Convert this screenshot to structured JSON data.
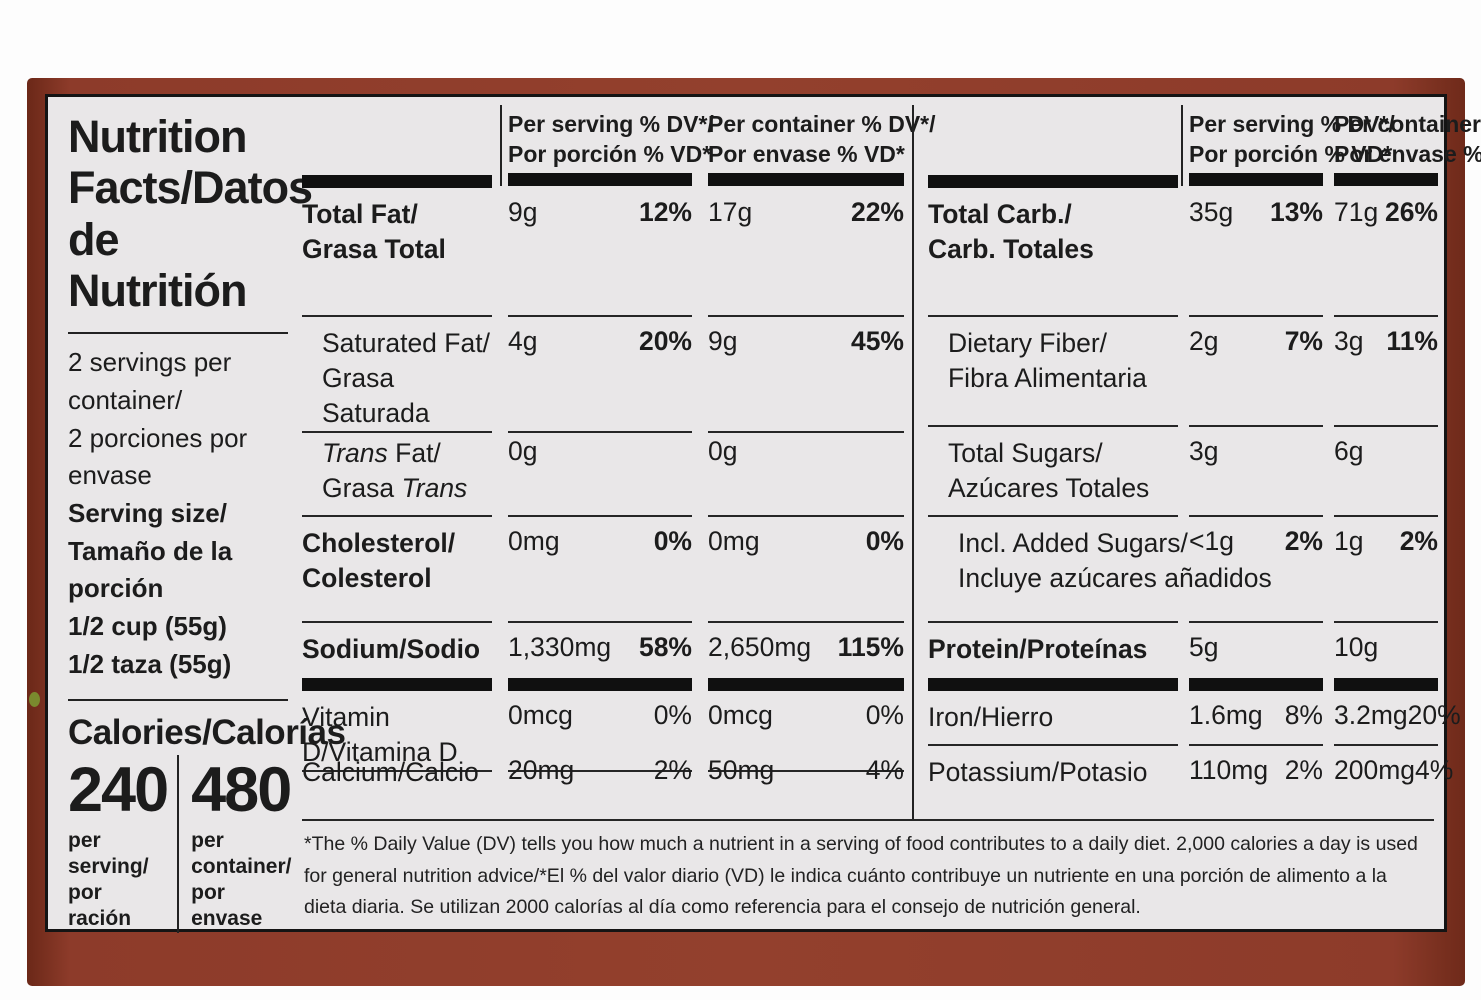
{
  "panel": {
    "title": {
      "line1": "Nutrition",
      "line2": "Facts/Datos",
      "line3": "de Nutritión"
    },
    "serving_info": {
      "servings_en": "2 servings per container/",
      "servings_es": "2 porciones por envase",
      "size_en": "Serving size/",
      "size_es": "Tamaño de la porción",
      "size_val_en": "1/2 cup (55g)",
      "size_val_es": "1/2 taza (55g)"
    },
    "calories": {
      "heading": "Calories/Calorías",
      "per_serving_value": "240",
      "per_serving_cap1": "per serving/",
      "per_serving_cap2": "por ración",
      "per_container_value": "480",
      "per_container_cap1": "per container/",
      "per_container_cap2": "por envase"
    },
    "column_headers": {
      "serving_l1": "Per serving % DV*/",
      "serving_l2": "Por porción % VD*",
      "container_l1": "Per container % DV*/",
      "container_l2": "Por envase % VD*"
    },
    "left_table": {
      "rows": [
        {
          "label_en": "Total Fat/",
          "label_es": "Grasa Total",
          "amt_serv": "9g",
          "dv_serv": "12%",
          "amt_cont": "17g",
          "dv_cont": "22%"
        },
        {
          "label_en": "Saturated Fat/",
          "label_es": "Grasa Saturada",
          "amt_serv": "4g",
          "dv_serv": "20%",
          "amt_cont": "9g",
          "dv_cont": "45%"
        },
        {
          "label_en_it": "Trans",
          "label_en_rest": " Fat/",
          "label_es_rest": "Grasa ",
          "label_es_it": "Trans",
          "amt_serv": "0g",
          "dv_serv": "",
          "amt_cont": "0g",
          "dv_cont": ""
        },
        {
          "label_en": "Cholesterol/",
          "label_es": "Colesterol",
          "amt_serv": "0mg",
          "dv_serv": "0%",
          "amt_cont": "0mg",
          "dv_cont": "0%"
        },
        {
          "label_en": "Sodium/Sodio",
          "label_es": "",
          "amt_serv": "1,330mg",
          "dv_serv": "58%",
          "amt_cont": "2,650mg",
          "dv_cont": "115%"
        },
        {
          "label_en": "Vitamin D/Vitamina D",
          "label_es": "",
          "amt_serv": "0mcg",
          "dv_serv": "0%",
          "amt_cont": "0mcg",
          "dv_cont": "0%"
        },
        {
          "label_en": "Calcium/Calcio",
          "label_es": "",
          "amt_serv": "20mg",
          "dv_serv": "2%",
          "amt_cont": "50mg",
          "dv_cont": "4%"
        }
      ]
    },
    "right_table": {
      "rows": [
        {
          "label_en": "Total Carb./",
          "label_es": "Carb. Totales",
          "amt_serv": "35g",
          "dv_serv": "13%",
          "amt_cont": "71g",
          "dv_cont": "26%"
        },
        {
          "label_en": "Dietary Fiber/",
          "label_es": "Fibra Alimentaria",
          "amt_serv": "2g",
          "dv_serv": "7%",
          "amt_cont": "3g",
          "dv_cont": "11%"
        },
        {
          "label_en": "Total Sugars/",
          "label_es": "Azúcares Totales",
          "amt_serv": "3g",
          "dv_serv": "",
          "amt_cont": "6g",
          "dv_cont": ""
        },
        {
          "label_en": "Incl. Added Sugars/",
          "label_es": "Incluye azúcares añadidos",
          "amt_serv": "<1g",
          "dv_serv": "2%",
          "amt_cont": "1g",
          "dv_cont": "2%"
        },
        {
          "label_en": "Protein/Proteínas",
          "label_es": "",
          "amt_serv": "5g",
          "dv_serv": "",
          "amt_cont": "10g",
          "dv_cont": ""
        },
        {
          "label_en": "Iron/Hierro",
          "label_es": "",
          "amt_serv": "1.6mg",
          "dv_serv": "8%",
          "amt_cont": "3.2mg",
          "dv_cont": "20%"
        },
        {
          "label_en": "Potassium/Potasio",
          "label_es": "",
          "amt_serv": "110mg",
          "dv_serv": "2%",
          "amt_cont": "200mg",
          "dv_cont": "4%"
        }
      ]
    },
    "footnote": "*The % Daily Value (DV) tells you how much a nutrient in a serving of food contributes to a daily diet. 2,000 calories a day is used for general nutrition advice/*El % del valor diario (VD) le indica cuánto contribuye un nutriente en una porción de alimento a la dieta diaria. Se utilizan 2000 calorías al día como referencia para el consejo de nutrición general.",
    "colors": {
      "can": "#93402d",
      "label_bg": "#e9e7e8",
      "ink": "#1c1c1c"
    }
  }
}
